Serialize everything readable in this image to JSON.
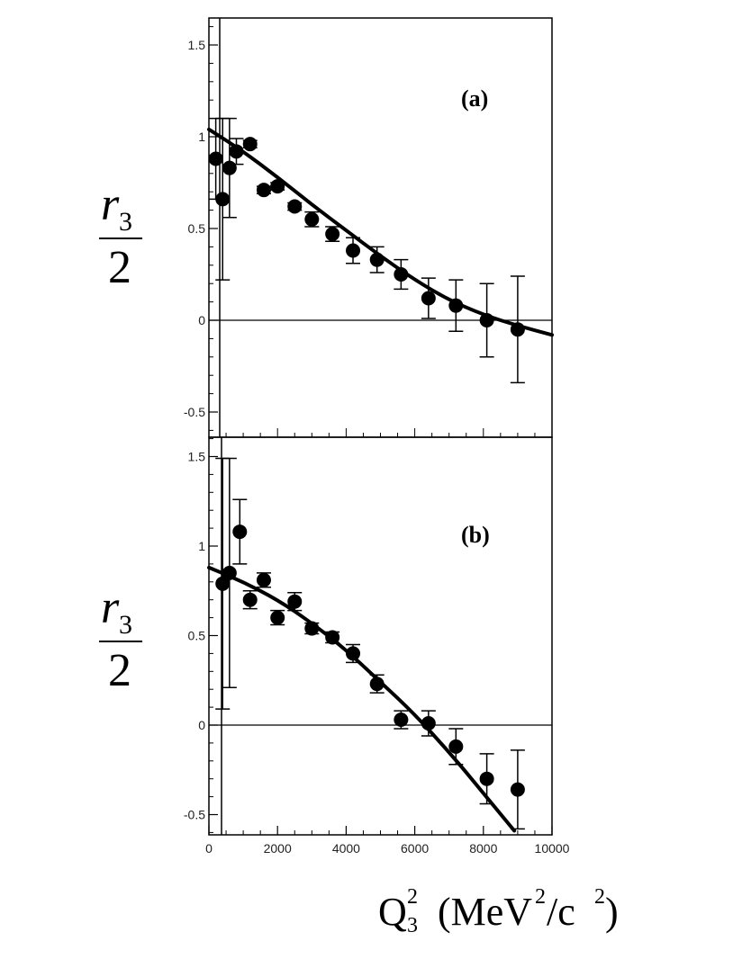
{
  "chart_data": [
    {
      "type": "scatter",
      "panel_label": "(a)",
      "ylabel": "r3/2",
      "xlabel": "Q3^2 (MeV^2/c^2)",
      "xlim": [
        0,
        10000
      ],
      "ylim": [
        -0.6,
        1.6
      ],
      "yticks": [
        -0.5,
        0,
        0.5,
        1,
        1.5
      ],
      "ytick_labels": [
        "-0.5",
        "0",
        "0.5",
        "1",
        "1.5"
      ],
      "reference_line_y": 0,
      "points": [
        {
          "x": 200,
          "y": 0.88,
          "err": 0.22
        },
        {
          "x": 400,
          "y": 0.66,
          "err": 0.44
        },
        {
          "x": 600,
          "y": 0.83,
          "err": 0.27
        },
        {
          "x": 800,
          "y": 0.92,
          "err": 0.07
        },
        {
          "x": 1200,
          "y": 0.96,
          "err": 0.02
        },
        {
          "x": 1600,
          "y": 0.71,
          "err": 0.02
        },
        {
          "x": 2000,
          "y": 0.73,
          "err": 0.02
        },
        {
          "x": 2500,
          "y": 0.62,
          "err": 0.02
        },
        {
          "x": 3000,
          "y": 0.55,
          "err": 0.04
        },
        {
          "x": 3600,
          "y": 0.47,
          "err": 0.04
        },
        {
          "x": 4200,
          "y": 0.38,
          "err": 0.07
        },
        {
          "x": 4900,
          "y": 0.33,
          "err": 0.07
        },
        {
          "x": 5600,
          "y": 0.25,
          "err": 0.08
        },
        {
          "x": 6400,
          "y": 0.12,
          "err": 0.11
        },
        {
          "x": 7200,
          "y": 0.08,
          "err": 0.14
        },
        {
          "x": 8100,
          "y": 0.0,
          "err": 0.2
        },
        {
          "x": 9000,
          "y": -0.05,
          "err": 0.29
        }
      ],
      "fit": {
        "x": [
          0,
          1000,
          2000,
          3000,
          4000,
          5000,
          6000,
          7000,
          8000,
          9000,
          10000
        ],
        "y": [
          1.04,
          0.92,
          0.78,
          0.63,
          0.49,
          0.35,
          0.22,
          0.11,
          0.03,
          -0.03,
          -0.08
        ]
      }
    },
    {
      "type": "scatter",
      "panel_label": "(b)",
      "ylabel": "r3/2",
      "xlabel": "Q3^2 (MeV^2/c^2)",
      "xlim": [
        0,
        10000
      ],
      "ylim": [
        -0.6,
        1.6
      ],
      "xticks": [
        0,
        2000,
        4000,
        6000,
        8000,
        10000
      ],
      "xtick_labels": [
        "0",
        "2000",
        "4000",
        "6000",
        "8000",
        "10000"
      ],
      "yticks": [
        -0.5,
        0,
        0.5,
        1,
        1.5
      ],
      "ytick_labels": [
        "-0.5",
        "0",
        "0.5",
        "1",
        "1.5"
      ],
      "reference_line_y": 0,
      "points": [
        {
          "x": 400,
          "y": 0.79,
          "err": 0.7
        },
        {
          "x": 600,
          "y": 0.85,
          "err": 0.64
        },
        {
          "x": 900,
          "y": 1.08,
          "err": 0.18
        },
        {
          "x": 1200,
          "y": 0.7,
          "err": 0.05
        },
        {
          "x": 1600,
          "y": 0.81,
          "err": 0.04
        },
        {
          "x": 2000,
          "y": 0.6,
          "err": 0.04
        },
        {
          "x": 2500,
          "y": 0.69,
          "err": 0.05
        },
        {
          "x": 3000,
          "y": 0.54,
          "err": 0.03
        },
        {
          "x": 3600,
          "y": 0.49,
          "err": 0.03
        },
        {
          "x": 4200,
          "y": 0.4,
          "err": 0.05
        },
        {
          "x": 4900,
          "y": 0.23,
          "err": 0.05
        },
        {
          "x": 5600,
          "y": 0.03,
          "err": 0.05
        },
        {
          "x": 6400,
          "y": 0.01,
          "err": 0.07
        },
        {
          "x": 7200,
          "y": -0.12,
          "err": 0.1
        },
        {
          "x": 8100,
          "y": -0.3,
          "err": 0.14
        },
        {
          "x": 9000,
          "y": -0.36,
          "err": 0.22
        }
      ],
      "fit": {
        "x": [
          0,
          1000,
          2000,
          3000,
          4000,
          5000,
          6000,
          7000,
          8000,
          8900
        ],
        "y": [
          0.88,
          0.8,
          0.7,
          0.57,
          0.42,
          0.24,
          0.06,
          -0.15,
          -0.38,
          -0.59
        ]
      }
    }
  ],
  "axis_labels": {
    "ylabel_r": "r",
    "ylabel_sub": "3",
    "ylabel_den": "2",
    "xlabel_q": "Q",
    "xlabel_q_sup": "2",
    "xlabel_q_sub": "3",
    "xlabel_unit_open": "(MeV",
    "xlabel_unit_sup1": "2",
    "xlabel_unit_mid": "/c",
    "xlabel_unit_sup2": "2",
    "xlabel_unit_close": ")"
  }
}
